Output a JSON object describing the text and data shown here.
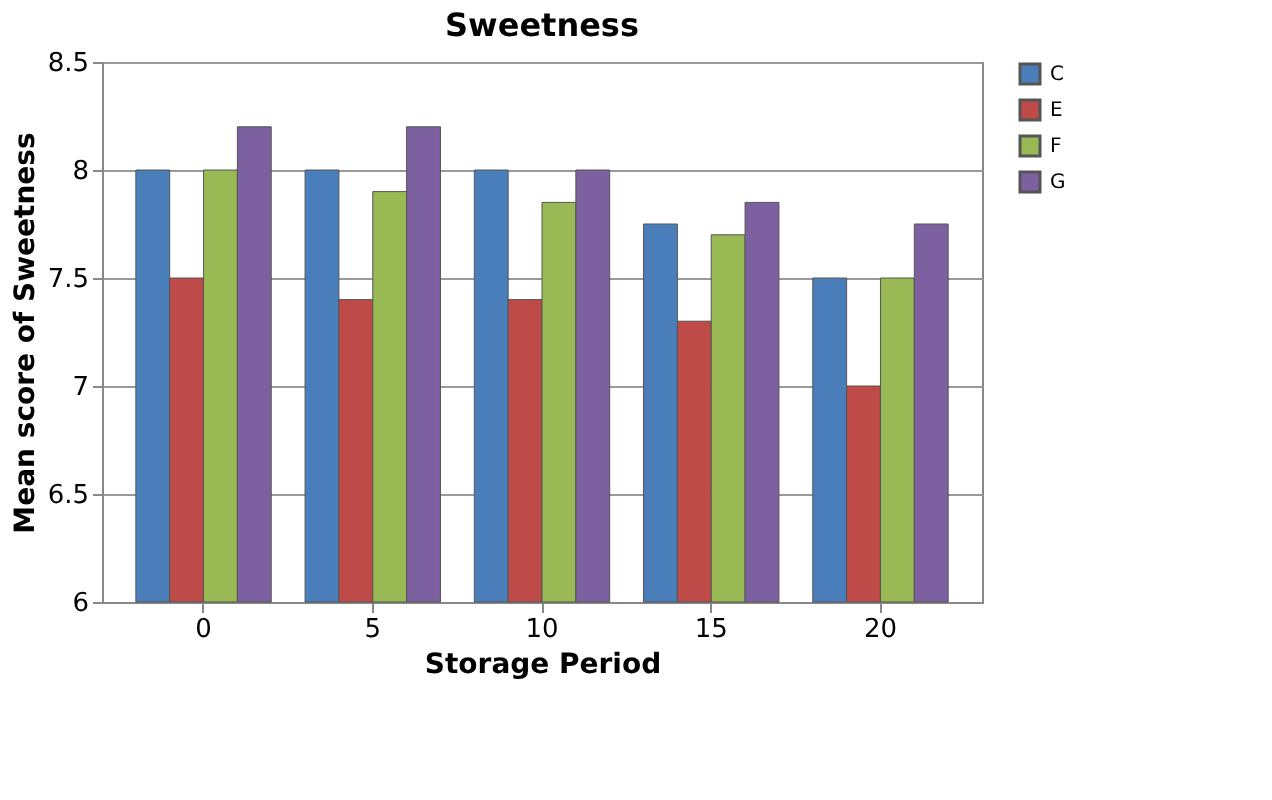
{
  "chart_data": {
    "type": "bar",
    "title": "Sweetness",
    "xlabel": "Storage Period",
    "ylabel": "Mean score of Sweetness",
    "categories": [
      "0",
      "5",
      "10",
      "15",
      "20"
    ],
    "series": [
      {
        "name": "C",
        "color": "#4a7ebb",
        "values": [
          8.0,
          8.0,
          8.0,
          7.75,
          7.5
        ]
      },
      {
        "name": "E",
        "color": "#be4b48",
        "values": [
          7.5,
          7.4,
          7.4,
          7.3,
          7.0
        ]
      },
      {
        "name": "F",
        "color": "#98b954",
        "values": [
          8.0,
          7.9,
          7.85,
          7.7,
          7.5
        ]
      },
      {
        "name": "G",
        "color": "#7d60a0",
        "values": [
          8.2,
          8.2,
          8.0,
          7.85,
          7.75
        ]
      }
    ],
    "ylim": [
      6,
      8.5
    ],
    "yticks": [
      6,
      6.5,
      7,
      7.5,
      8,
      8.5
    ],
    "grid": "y",
    "legend": "right"
  }
}
